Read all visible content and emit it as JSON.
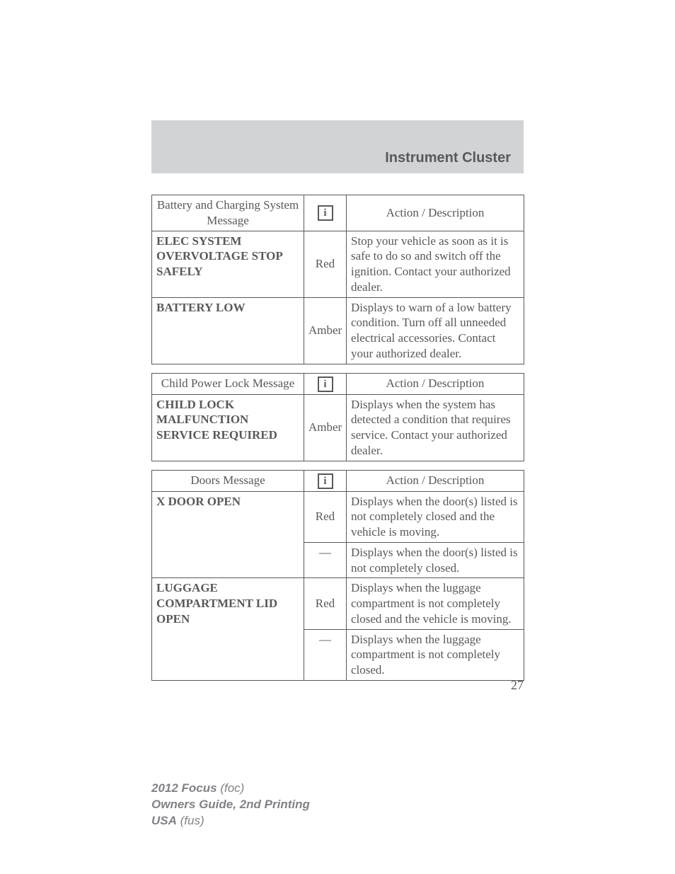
{
  "section_title": "Instrument Cluster",
  "page_number": "27",
  "info_glyph": "i",
  "dash": "—",
  "colors": {
    "band_bg": "#d1d3d4",
    "text": "#58595b",
    "footer_text": "#808285",
    "border": "#58595b",
    "page_bg": "#ffffff"
  },
  "tables": [
    {
      "header": {
        "message": "Battery and Charging System Message",
        "action": "Action / Description"
      },
      "rows": [
        {
          "message": "ELEC SYSTEM OVERVOLTAGE STOP SAFELY",
          "indicator": "Red",
          "description": "Stop your vehicle as soon as it is safe to do so and switch off the ignition. Contact your authorized dealer."
        },
        {
          "message": "BATTERY LOW",
          "indicator": "Amber",
          "description": "Displays to warn of a low battery condition. Turn off all unneeded electrical accessories. Contact your authorized dealer."
        }
      ]
    },
    {
      "header": {
        "message": "Child Power Lock Message",
        "action": "Action / Description"
      },
      "rows": [
        {
          "message": "CHILD LOCK MALFUNCTION SERVICE REQUIRED",
          "indicator": "Amber",
          "description": "Displays when the system has detected a condition that requires service. Contact your authorized dealer."
        }
      ]
    },
    {
      "header": {
        "message": "Doors Message",
        "action": "Action / Description"
      },
      "groups": [
        {
          "message": "X DOOR OPEN",
          "subrows": [
            {
              "indicator": "Red",
              "description": "Displays when the door(s) listed is not completely closed and the vehicle is moving."
            },
            {
              "indicator": "—",
              "description": "Displays when the door(s) listed is not completely closed."
            }
          ]
        },
        {
          "message": "LUGGAGE COMPARTMENT LID OPEN",
          "subrows": [
            {
              "indicator": "Red",
              "description": "Displays when the luggage compartment is not completely closed and the vehicle is moving."
            },
            {
              "indicator": "—",
              "description": "Displays when the luggage compartment is not completely closed."
            }
          ]
        }
      ]
    }
  ],
  "footer": {
    "model_year": "2012 Focus",
    "model_code": "(foc)",
    "guide": "Owners Guide, 2nd Printing",
    "market": "USA",
    "market_code": "(fus)"
  }
}
